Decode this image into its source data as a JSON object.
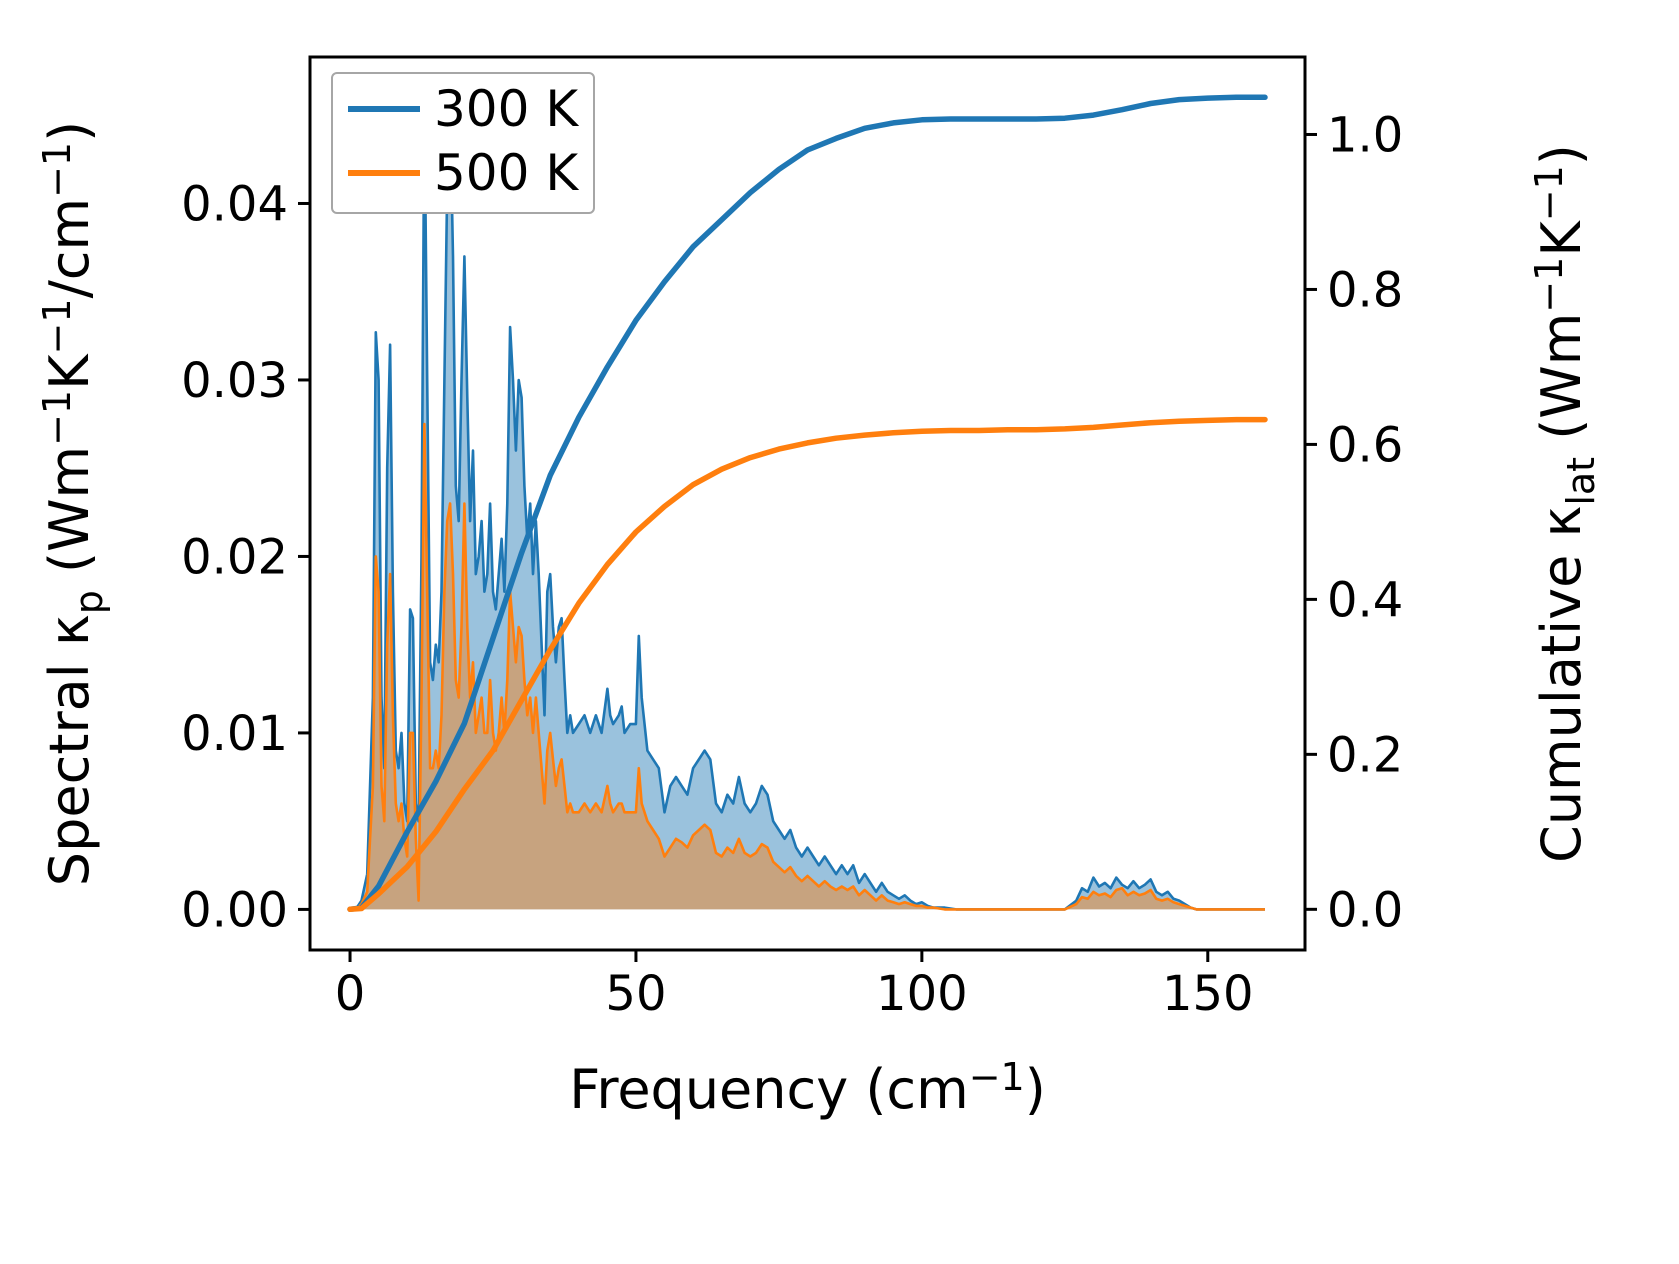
{
  "figure": {
    "background": "#ffffff",
    "text_color": "#000000",
    "legend": {
      "position": "upper left",
      "items": [
        {
          "label": "300 K",
          "color": "#1f77b4"
        },
        {
          "label": "500 K",
          "color": "#ff7f0e"
        }
      ]
    },
    "axes": {
      "x": {
        "label_parts": [
          {
            "t": "Frequency (cm"
          },
          {
            "t": "−1",
            "s": "sup"
          },
          {
            "t": ")"
          }
        ],
        "lim": [
          -7,
          167
        ],
        "ticks": [
          0,
          50,
          100,
          150
        ],
        "tick_labels": [
          "0",
          "50",
          "100",
          "150"
        ]
      },
      "y_left": {
        "label_parts": [
          {
            "t": "Spectral κ"
          },
          {
            "t": "p",
            "s": "sub"
          },
          {
            "t": " (Wm"
          },
          {
            "t": "−1",
            "s": "sup"
          },
          {
            "t": "K"
          },
          {
            "t": "−1",
            "s": "sup"
          },
          {
            "t": "/cm"
          },
          {
            "t": "−1",
            "s": "sup"
          },
          {
            "t": ")"
          }
        ],
        "lim": [
          -0.0023,
          0.0483
        ],
        "ticks": [
          0,
          0.01,
          0.02,
          0.03,
          0.04
        ],
        "tick_labels": [
          "0.00",
          "0.01",
          "0.02",
          "0.03",
          "0.04"
        ]
      },
      "y_right": {
        "label_parts": [
          {
            "t": "Cumulative κ"
          },
          {
            "t": "lat",
            "s": "sub"
          },
          {
            "t": " (Wm"
          },
          {
            "t": "−1",
            "s": "sup"
          },
          {
            "t": "K"
          },
          {
            "t": "−1",
            "s": "sup"
          },
          {
            "t": ")"
          }
        ],
        "lim": [
          -0.0525,
          1.1
        ],
        "ticks": [
          0,
          0.2,
          0.4,
          0.6,
          0.8,
          1.0
        ],
        "tick_labels": [
          "0.0",
          "0.2",
          "0.4",
          "0.6",
          "0.8",
          "1.0"
        ]
      }
    }
  },
  "chart_data": {
    "type": "area",
    "title": "",
    "xlabel": "Frequency (cm^-1)",
    "ylabel_left": "Spectral kappa_p (Wm^-1 K^-1 / cm^-1)",
    "ylabel_right": "Cumulative kappa_lat (Wm^-1 K^-1)",
    "xlim": [
      -7,
      167
    ],
    "ylim_left": [
      -0.0023,
      0.0483
    ],
    "ylim_right": [
      -0.0525,
      1.1
    ],
    "grid": false,
    "spectral": {
      "type": "area",
      "axis": "left",
      "fill_opacity": 0.45,
      "x": [
        0,
        1,
        2,
        3,
        4,
        4.5,
        5,
        5.5,
        6,
        6.5,
        7,
        7.5,
        8,
        8.5,
        9,
        9.5,
        10,
        10.5,
        11,
        11.5,
        12,
        12.5,
        13,
        13.5,
        14,
        14.5,
        15,
        15.5,
        16,
        16.5,
        17,
        17.5,
        18,
        18.5,
        19,
        19.5,
        20,
        20.5,
        21,
        21.5,
        22,
        22.5,
        23,
        23.5,
        24,
        24.5,
        25,
        25.5,
        26,
        26.5,
        27,
        27.5,
        28,
        28.5,
        29,
        29.5,
        30,
        30.5,
        31,
        31.5,
        32,
        32.5,
        33,
        34,
        34.5,
        35,
        35.5,
        36,
        36.5,
        37,
        37.5,
        38,
        38.5,
        39,
        40,
        41,
        42,
        43,
        44,
        45,
        45.5,
        46,
        47,
        47.5,
        48,
        49,
        50,
        50.5,
        51,
        52,
        53,
        54,
        55,
        56,
        57,
        58,
        59,
        60,
        61,
        62,
        63,
        64,
        65,
        66,
        67,
        68,
        69,
        70,
        71,
        72,
        73,
        74,
        75,
        76,
        77,
        78,
        79,
        80,
        81,
        82,
        83,
        84,
        85,
        86,
        87,
        88,
        89,
        90,
        91,
        92,
        93,
        94,
        95,
        96,
        97,
        98,
        99,
        100,
        101,
        102,
        104,
        106,
        110,
        115,
        120,
        125,
        127,
        128,
        129,
        130,
        131,
        132,
        133,
        134,
        135,
        136,
        137,
        138,
        139,
        140,
        141,
        142,
        143,
        144,
        145,
        146,
        147,
        148,
        150,
        155,
        160
      ],
      "series": [
        {
          "name": "300 K",
          "color": "#1f77b4",
          "values": [
            0,
            0,
            0.0005,
            0.002,
            0.012,
            0.0327,
            0.03,
            0.012,
            0.008,
            0.025,
            0.032,
            0.018,
            0.009,
            0.008,
            0.01,
            0.006,
            0.005,
            0.017,
            0.0165,
            0.006,
            0.005,
            0.02,
            0.046,
            0.03,
            0.014,
            0.013,
            0.015,
            0.014,
            0.018,
            0.03,
            0.041,
            0.0455,
            0.037,
            0.024,
            0.022,
            0.03,
            0.037,
            0.029,
            0.022,
            0.026,
            0.019,
            0.02,
            0.022,
            0.018,
            0.019,
            0.023,
            0.018,
            0.017,
            0.019,
            0.021,
            0.018,
            0.023,
            0.033,
            0.03,
            0.026,
            0.03,
            0.029,
            0.024,
            0.021,
            0.023,
            0.019,
            0.022,
            0.019,
            0.011,
            0.018,
            0.019,
            0.016,
            0.014,
            0.016,
            0.0165,
            0.013,
            0.01,
            0.011,
            0.01,
            0.0105,
            0.011,
            0.01,
            0.011,
            0.01,
            0.0125,
            0.011,
            0.0105,
            0.011,
            0.0115,
            0.01,
            0.0105,
            0.0105,
            0.0155,
            0.012,
            0.009,
            0.0085,
            0.008,
            0.0055,
            0.007,
            0.0075,
            0.007,
            0.0065,
            0.008,
            0.0085,
            0.009,
            0.0085,
            0.006,
            0.0055,
            0.0065,
            0.006,
            0.0075,
            0.006,
            0.0055,
            0.006,
            0.007,
            0.0065,
            0.005,
            0.0045,
            0.004,
            0.0045,
            0.0035,
            0.003,
            0.0035,
            0.003,
            0.0025,
            0.003,
            0.0025,
            0.002,
            0.0025,
            0.002,
            0.0025,
            0.0015,
            0.002,
            0.0015,
            0.001,
            0.0015,
            0.001,
            0.0008,
            0.0006,
            0.0008,
            0.0005,
            0.0003,
            0.0004,
            0.0002,
            0.0001,
            0.0001,
            0,
            0,
            0,
            0,
            0,
            0.0005,
            0.0012,
            0.001,
            0.0018,
            0.0013,
            0.0015,
            0.0012,
            0.0018,
            0.0014,
            0.0012,
            0.0016,
            0.0012,
            0.0014,
            0.0017,
            0.001,
            0.0008,
            0.001,
            0.0006,
            0.0005,
            0.0003,
            0.0001,
            0,
            0,
            0,
            0
          ]
        },
        {
          "name": "500 K",
          "color": "#ff7f0e",
          "values": [
            0,
            0,
            0.0003,
            0.001,
            0.007,
            0.02,
            0.018,
            0.007,
            0.005,
            0.015,
            0.019,
            0.011,
            0.006,
            0.005,
            0.006,
            0.004,
            0.003,
            0.01,
            0.01,
            0.004,
            0.0005,
            0.012,
            0.0275,
            0.018,
            0.008,
            0.008,
            0.009,
            0.008,
            0.011,
            0.018,
            0.022,
            0.023,
            0.019,
            0.013,
            0.012,
            0.016,
            0.023,
            0.016,
            0.012,
            0.014,
            0.01,
            0.011,
            0.012,
            0.01,
            0.01,
            0.013,
            0.01,
            0.009,
            0.01,
            0.012,
            0.01,
            0.013,
            0.018,
            0.016,
            0.014,
            0.016,
            0.0155,
            0.013,
            0.011,
            0.012,
            0.01,
            0.012,
            0.01,
            0.006,
            0.009,
            0.01,
            0.0085,
            0.007,
            0.008,
            0.0085,
            0.007,
            0.0055,
            0.006,
            0.0055,
            0.0055,
            0.006,
            0.0055,
            0.006,
            0.0055,
            0.007,
            0.006,
            0.0055,
            0.006,
            0.006,
            0.0055,
            0.0055,
            0.0055,
            0.008,
            0.006,
            0.005,
            0.0045,
            0.004,
            0.003,
            0.0035,
            0.004,
            0.0038,
            0.0035,
            0.0042,
            0.0045,
            0.0048,
            0.0045,
            0.0032,
            0.003,
            0.0035,
            0.0032,
            0.004,
            0.0032,
            0.003,
            0.0032,
            0.0037,
            0.0035,
            0.0027,
            0.0024,
            0.0021,
            0.0024,
            0.0019,
            0.0016,
            0.0019,
            0.0016,
            0.0013,
            0.0016,
            0.0013,
            0.0011,
            0.0013,
            0.0011,
            0.0013,
            0.0008,
            0.0011,
            0.0008,
            0.0005,
            0.0008,
            0.0005,
            0.0004,
            0.0003,
            0.0004,
            0.0003,
            0.0002,
            0.0002,
            0.0001,
            0.0001,
            0,
            0,
            0,
            0,
            0,
            0,
            0.0003,
            0.0007,
            0.0006,
            0.001,
            0.0008,
            0.0009,
            0.0007,
            0.0011,
            0.0012,
            0.0008,
            0.001,
            0.0008,
            0.0009,
            0.0011,
            0.0006,
            0.0005,
            0.0006,
            0.0004,
            0.0003,
            0.0002,
            0.0001,
            0,
            0,
            0,
            0
          ]
        }
      ]
    },
    "cumulative": {
      "type": "line",
      "axis": "right",
      "x": [
        0,
        2,
        5,
        10,
        15,
        20,
        25,
        30,
        35,
        40,
        45,
        50,
        55,
        60,
        65,
        70,
        75,
        80,
        85,
        90,
        95,
        100,
        105,
        110,
        115,
        120,
        125,
        130,
        135,
        140,
        145,
        150,
        155,
        160
      ],
      "series": [
        {
          "name": "300 K",
          "color": "#1f77b4",
          "values": [
            0,
            0.002,
            0.03,
            0.1,
            0.165,
            0.24,
            0.35,
            0.46,
            0.56,
            0.635,
            0.7,
            0.76,
            0.81,
            0.855,
            0.89,
            0.925,
            0.955,
            0.98,
            0.995,
            1.008,
            1.015,
            1.019,
            1.02,
            1.02,
            1.02,
            1.02,
            1.021,
            1.025,
            1.032,
            1.04,
            1.045,
            1.047,
            1.048,
            1.048
          ]
        },
        {
          "name": "500 K",
          "color": "#ff7f0e",
          "values": [
            0,
            0.001,
            0.02,
            0.055,
            0.1,
            0.155,
            0.205,
            0.27,
            0.335,
            0.395,
            0.445,
            0.487,
            0.52,
            0.548,
            0.568,
            0.583,
            0.594,
            0.602,
            0.608,
            0.612,
            0.615,
            0.617,
            0.618,
            0.618,
            0.619,
            0.619,
            0.62,
            0.622,
            0.625,
            0.628,
            0.63,
            0.631,
            0.632,
            0.632
          ]
        }
      ]
    }
  }
}
